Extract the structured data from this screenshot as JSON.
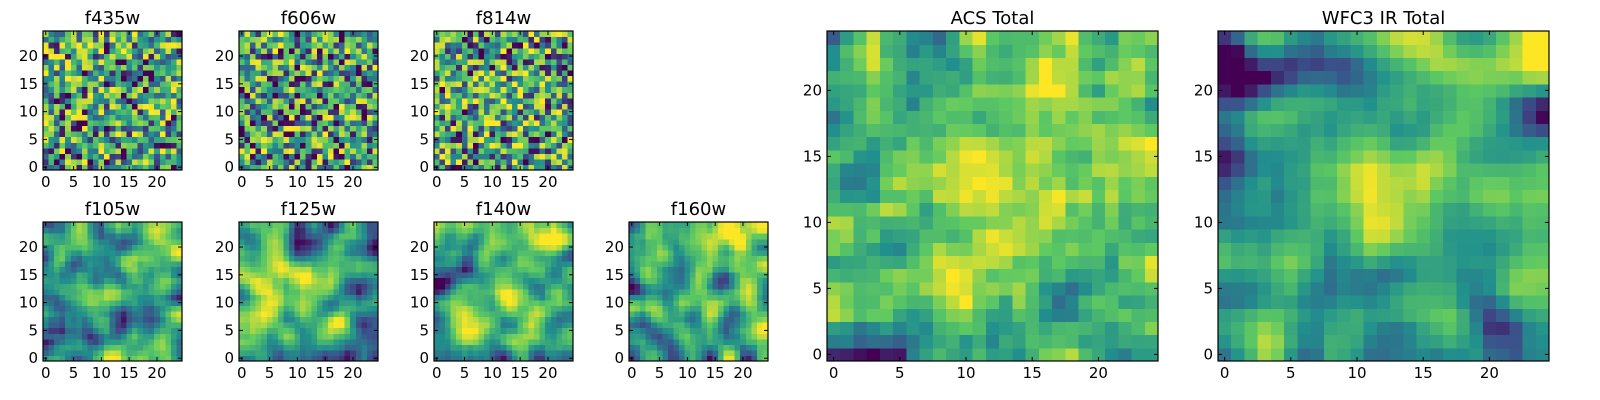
{
  "figure": {
    "colormap": "viridis",
    "palette": [
      "#440154",
      "#3b528b",
      "#21908d",
      "#5dc962",
      "#fde725"
    ],
    "value_range": [
      0,
      1
    ],
    "panel_order": [
      "f435w",
      "f606w",
      "f814w",
      "f105w",
      "f125w",
      "f140w",
      "f160w",
      "ACS Total",
      "WFC3 IR Total"
    ]
  },
  "chart_data": [
    {
      "type": "heatmap",
      "title": "f435w",
      "grid_size": [
        25,
        25
      ],
      "seed": 11,
      "smooth": 0,
      "clip": [
        0.05,
        0.97
      ],
      "xticks": [
        0,
        5,
        10,
        15,
        20
      ],
      "yticks": [
        0,
        5,
        10,
        15,
        20
      ],
      "xlim": [
        0,
        25
      ],
      "ylim": [
        0,
        25
      ],
      "hotspots": []
    },
    {
      "type": "heatmap",
      "title": "f606w",
      "grid_size": [
        25,
        25
      ],
      "seed": 23,
      "smooth": 0,
      "clip": [
        0.05,
        0.97
      ],
      "xticks": [
        0,
        5,
        10,
        15,
        20
      ],
      "yticks": [
        0,
        5,
        10,
        15,
        20
      ],
      "xlim": [
        0,
        25
      ],
      "ylim": [
        0,
        25
      ],
      "hotspots": []
    },
    {
      "type": "heatmap",
      "title": "f814w",
      "grid_size": [
        25,
        25
      ],
      "seed": 37,
      "smooth": 0,
      "clip": [
        0.05,
        0.97
      ],
      "xticks": [
        0,
        5,
        10,
        15,
        20
      ],
      "yticks": [
        0,
        5,
        10,
        15,
        20
      ],
      "xlim": [
        0,
        25
      ],
      "ylim": [
        0,
        25
      ],
      "hotspots": [
        [
          12,
          12,
          0.12,
          4
        ]
      ]
    },
    {
      "type": "heatmap",
      "title": "f105w",
      "grid_size": [
        25,
        25
      ],
      "seed": 41,
      "smooth": 2,
      "clip": [
        0.03,
        0.98
      ],
      "xticks": [
        0,
        5,
        10,
        15,
        20
      ],
      "yticks": [
        0,
        5,
        10,
        15,
        20
      ],
      "xlim": [
        0,
        25
      ],
      "ylim": [
        0,
        25
      ],
      "hotspots": [
        [
          12,
          12,
          0.25,
          3
        ],
        [
          19,
          21,
          0.2,
          3
        ]
      ]
    },
    {
      "type": "heatmap",
      "title": "f125w",
      "grid_size": [
        25,
        25
      ],
      "seed": 53,
      "smooth": 2,
      "clip": [
        0.03,
        0.98
      ],
      "xticks": [
        0,
        5,
        10,
        15,
        20
      ],
      "yticks": [
        0,
        5,
        10,
        15,
        20
      ],
      "xlim": [
        0,
        25
      ],
      "ylim": [
        0,
        25
      ],
      "hotspots": [
        [
          12,
          12,
          0.22,
          3
        ],
        [
          5,
          14,
          0.18,
          3
        ]
      ]
    },
    {
      "type": "heatmap",
      "title": "f140w",
      "grid_size": [
        25,
        25
      ],
      "seed": 67,
      "smooth": 2,
      "clip": [
        0.03,
        0.98
      ],
      "xticks": [
        0,
        5,
        10,
        15,
        20
      ],
      "yticks": [
        0,
        5,
        10,
        15,
        20
      ],
      "xlim": [
        0,
        25
      ],
      "ylim": [
        0,
        25
      ],
      "hotspots": [
        [
          20,
          22,
          0.22,
          3
        ],
        [
          12,
          12,
          0.18,
          3
        ]
      ]
    },
    {
      "type": "heatmap",
      "title": "f160w",
      "grid_size": [
        25,
        25
      ],
      "seed": 79,
      "smooth": 2,
      "clip": [
        0.03,
        0.98
      ],
      "xticks": [
        0,
        5,
        10,
        15,
        20
      ],
      "yticks": [
        0,
        5,
        10,
        15,
        20
      ],
      "xlim": [
        0,
        25
      ],
      "ylim": [
        0,
        25
      ],
      "hotspots": [
        [
          19,
          22,
          0.3,
          3
        ],
        [
          12,
          12,
          0.15,
          3
        ]
      ]
    },
    {
      "type": "heatmap",
      "title": "ACS Total",
      "grid_size": [
        25,
        25
      ],
      "seed": 97,
      "smooth": 1,
      "clip": [
        0.02,
        0.99
      ],
      "xticks": [
        0,
        5,
        10,
        15,
        20
      ],
      "yticks": [
        0,
        5,
        10,
        15,
        20
      ],
      "xlim": [
        0,
        25
      ],
      "ylim": [
        0,
        25
      ],
      "hotspots": [
        [
          12,
          12,
          0.28,
          3
        ],
        [
          17,
          23,
          0.22,
          3
        ],
        [
          15,
          19,
          0.15,
          3
        ]
      ]
    },
    {
      "type": "heatmap",
      "title": "WFC3 IR Total",
      "grid_size": [
        25,
        25
      ],
      "seed": 113,
      "smooth": 2,
      "clip": [
        0.02,
        0.99
      ],
      "xticks": [
        0,
        5,
        10,
        15,
        20
      ],
      "yticks": [
        0,
        5,
        10,
        15,
        20
      ],
      "xlim": [
        0,
        25
      ],
      "ylim": [
        0,
        25
      ],
      "hotspots": [
        [
          12,
          12,
          0.35,
          3
        ],
        [
          19,
          23,
          0.4,
          3
        ],
        [
          1,
          22,
          -0.35,
          2
        ],
        [
          3,
          22,
          -0.3,
          2
        ]
      ]
    }
  ]
}
